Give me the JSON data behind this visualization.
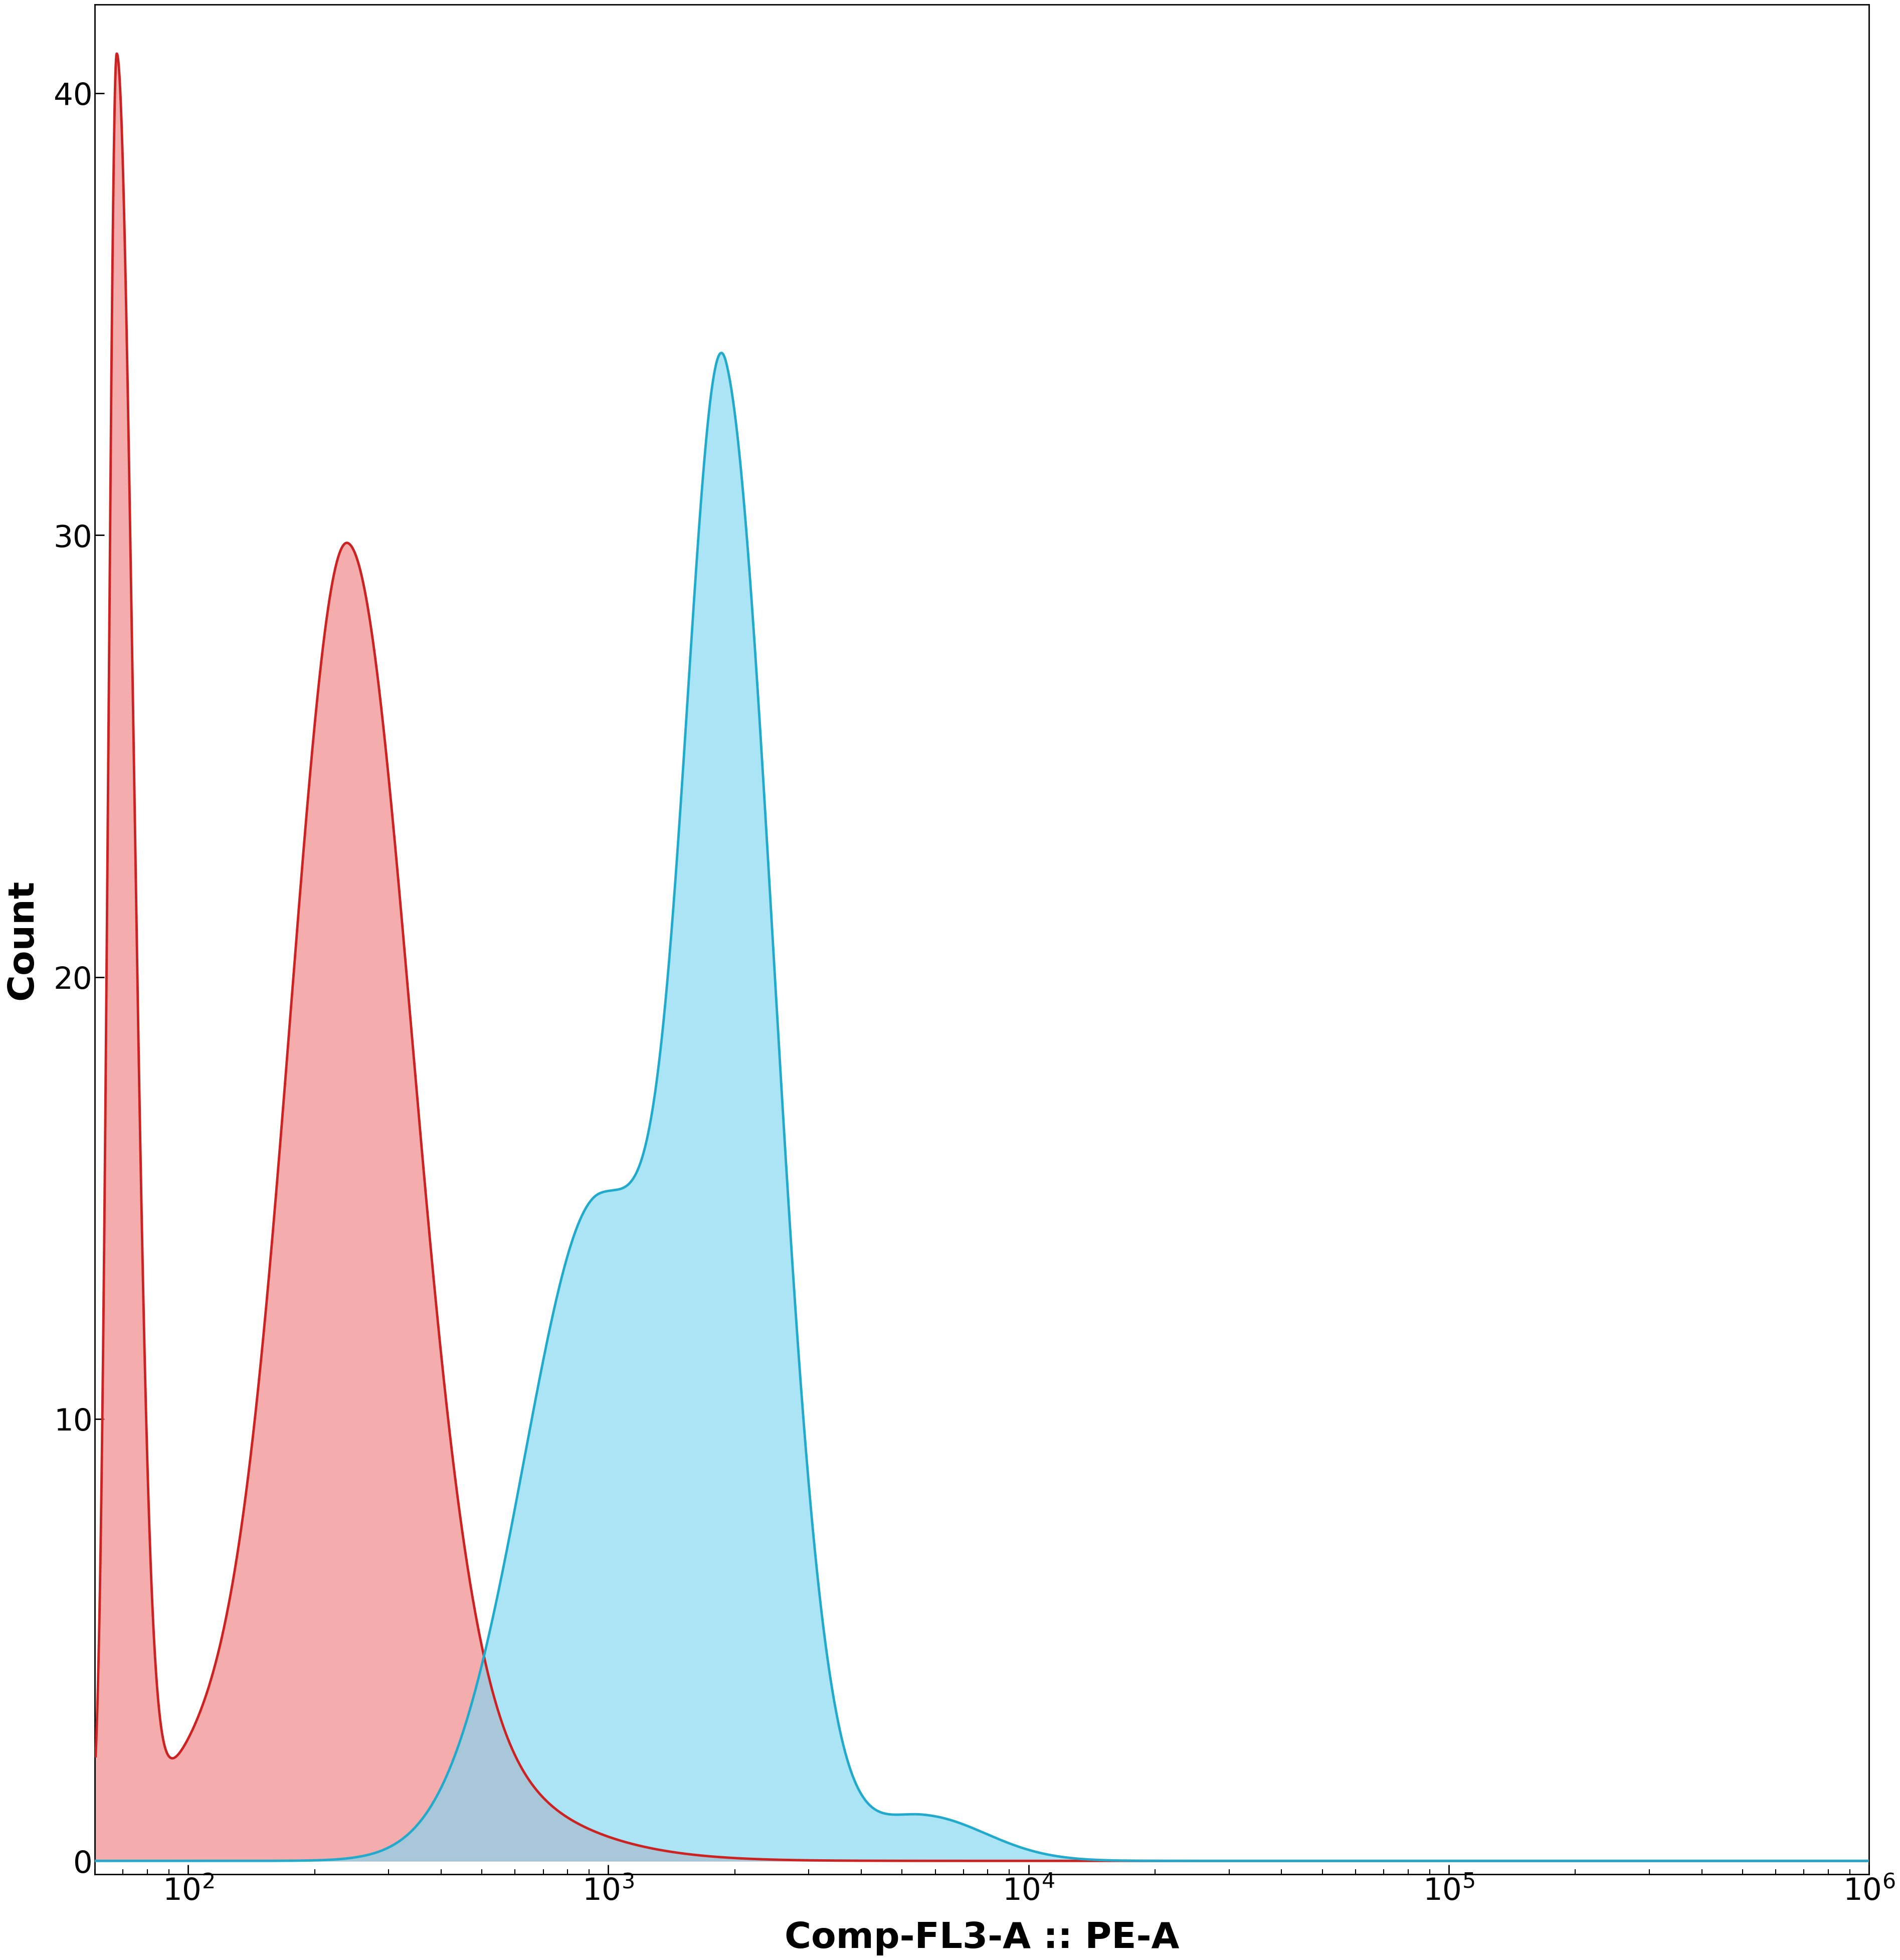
{
  "xlabel": "Comp-FL3-A :: PE-A",
  "ylabel": "Count",
  "xlim_log": [
    60,
    1000000
  ],
  "ylim": [
    -0.3,
    42
  ],
  "yticks": [
    0,
    10,
    20,
    30,
    40
  ],
  "background_color": "#ffffff",
  "red_fill_color": "#f08080",
  "red_line_color": "#cc2222",
  "blue_fill_color": "#7fd7f0",
  "blue_line_color": "#22aacc",
  "red_alpha": 0.65,
  "blue_alpha": 0.65,
  "xlabel_fontsize": 52,
  "ylabel_fontsize": 52,
  "tick_fontsize": 44,
  "line_width": 3.5
}
